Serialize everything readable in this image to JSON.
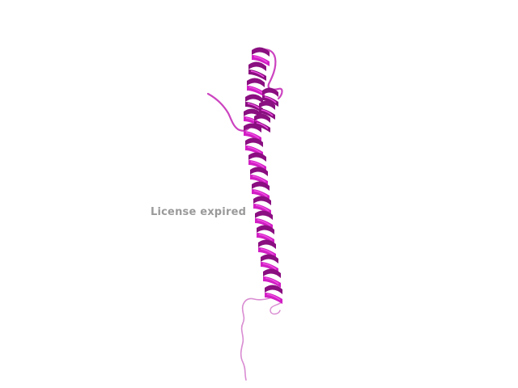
{
  "viewer": {
    "watermark_text": "License expired",
    "background_color": "#ffffff",
    "watermark_color": "#9a9a9a"
  },
  "structure": {
    "representation": "cartoon",
    "secondary_structure": "alpha-helix",
    "helix_color": "#d21fc4",
    "helix_dark_color": "#8a0f80",
    "helix_light_color": "#ee4fe2",
    "coil_color": "#cc44c0",
    "tail_color": "#d98cd2"
  }
}
